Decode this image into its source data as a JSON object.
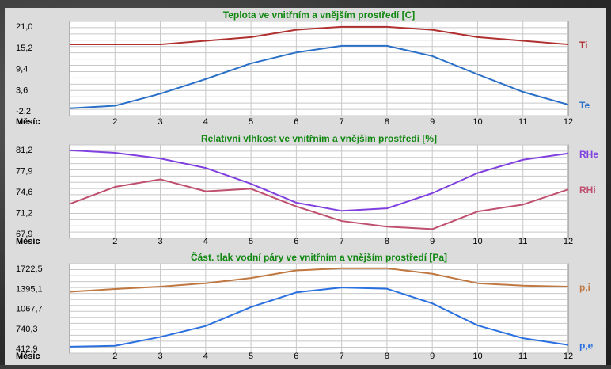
{
  "chart_data": [
    {
      "type": "line",
      "title": "Teplota ve vnitřním a vnějším prostředí [C]",
      "xlabel": "Měsíc",
      "x": [
        1,
        2,
        3,
        4,
        5,
        6,
        7,
        8,
        9,
        10,
        11,
        12
      ],
      "x_ticks": [
        "2",
        "3",
        "4",
        "5",
        "6",
        "7",
        "8",
        "9",
        "10",
        "11",
        "12"
      ],
      "y_ticks": [
        "21,0",
        "15,2",
        "9,4",
        "3,6",
        "-2,2"
      ],
      "ylim": [
        -2.2,
        21.0
      ],
      "series": [
        {
          "name": "Ti",
          "color": "#b03030",
          "values": [
            16.0,
            16.0,
            16.0,
            17.0,
            18.0,
            20.0,
            20.8,
            20.8,
            20.0,
            18.0,
            17.0,
            16.0
          ]
        },
        {
          "name": "Te",
          "color": "#2a70c8",
          "values": [
            -1.5,
            -0.8,
            2.5,
            6.5,
            10.8,
            13.8,
            15.6,
            15.6,
            12.8,
            7.8,
            3.0,
            -0.5
          ]
        }
      ],
      "grid": true
    },
    {
      "type": "line",
      "title": "Relativní vlhkost ve vnitřním a vnějším prostředí [%]",
      "xlabel": "Měsíc",
      "x": [
        1,
        2,
        3,
        4,
        5,
        6,
        7,
        8,
        9,
        10,
        11,
        12
      ],
      "x_ticks": [
        "2",
        "3",
        "4",
        "5",
        "6",
        "7",
        "8",
        "9",
        "10",
        "11",
        "12"
      ],
      "y_ticks": [
        "81,2",
        "77,9",
        "74,6",
        "71,2",
        "67,9"
      ],
      "ylim": [
        67.9,
        81.2
      ],
      "series": [
        {
          "name": "RHe",
          "color": "#8040e0",
          "values": [
            81.1,
            80.7,
            79.8,
            78.3,
            75.8,
            72.8,
            71.5,
            71.9,
            74.3,
            77.5,
            79.6,
            80.6
          ]
        },
        {
          "name": "RHi",
          "color": "#c05070",
          "values": [
            72.6,
            75.3,
            76.5,
            74.6,
            75.0,
            72.2,
            69.9,
            69.0,
            68.6,
            71.4,
            72.5,
            74.9
          ]
        }
      ],
      "grid": true
    },
    {
      "type": "line",
      "title": "Část. tlak vodní páry ve vnitřním a vnějším prostředí [Pa]",
      "xlabel": "Měsíc",
      "x": [
        1,
        2,
        3,
        4,
        5,
        6,
        7,
        8,
        9,
        10,
        11,
        12
      ],
      "x_ticks": [
        "2",
        "3",
        "4",
        "5",
        "6",
        "7",
        "8",
        "9",
        "10",
        "11",
        "12"
      ],
      "y_ticks": [
        "1722,5",
        "1395,1",
        "1067,7",
        "740,3",
        "412,9"
      ],
      "ylim": [
        412.9,
        1722.5
      ],
      "series": [
        {
          "name": "p,i",
          "color": "#c07840",
          "values": [
            1340,
            1385,
            1425,
            1480,
            1565,
            1690,
            1725,
            1725,
            1635,
            1480,
            1440,
            1425
          ]
        },
        {
          "name": "p,e",
          "color": "#2a70e0",
          "values": [
            440,
            455,
            600,
            780,
            1090,
            1330,
            1410,
            1390,
            1150,
            790,
            580,
            470
          ]
        }
      ],
      "grid": true
    }
  ]
}
